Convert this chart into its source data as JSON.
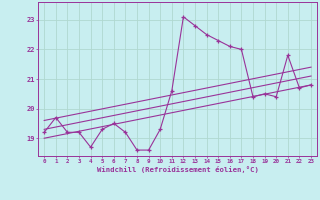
{
  "title": "",
  "xlabel": "Windchill (Refroidissement éolien,°C)",
  "ylabel": "",
  "bg_color": "#c8eef0",
  "grid_color": "#b0d8d0",
  "line_color": "#993399",
  "x_ticks": [
    0,
    1,
    2,
    3,
    4,
    5,
    6,
    7,
    8,
    9,
    10,
    11,
    12,
    13,
    14,
    15,
    16,
    17,
    18,
    19,
    20,
    21,
    22,
    23
  ],
  "y_ticks": [
    19,
    20,
    21,
    22,
    23
  ],
  "ylim": [
    18.4,
    23.6
  ],
  "xlim": [
    -0.5,
    23.5
  ],
  "main_x": [
    0,
    1,
    2,
    3,
    4,
    5,
    6,
    7,
    8,
    9,
    10,
    11,
    12,
    13,
    14,
    15,
    16,
    17,
    18,
    19,
    20,
    21,
    22,
    23
  ],
  "main_y": [
    19.2,
    19.7,
    19.2,
    19.2,
    18.7,
    19.3,
    19.5,
    19.2,
    18.6,
    18.6,
    19.3,
    20.6,
    23.1,
    22.8,
    22.5,
    22.3,
    22.1,
    22.0,
    20.4,
    20.5,
    20.4,
    21.8,
    20.7,
    20.8
  ],
  "trend1_x": [
    0,
    23
  ],
  "trend1_y": [
    19.0,
    20.8
  ],
  "trend2_x": [
    0,
    23
  ],
  "trend2_y": [
    19.3,
    21.1
  ],
  "trend3_x": [
    0,
    23
  ],
  "trend3_y": [
    19.6,
    21.4
  ]
}
